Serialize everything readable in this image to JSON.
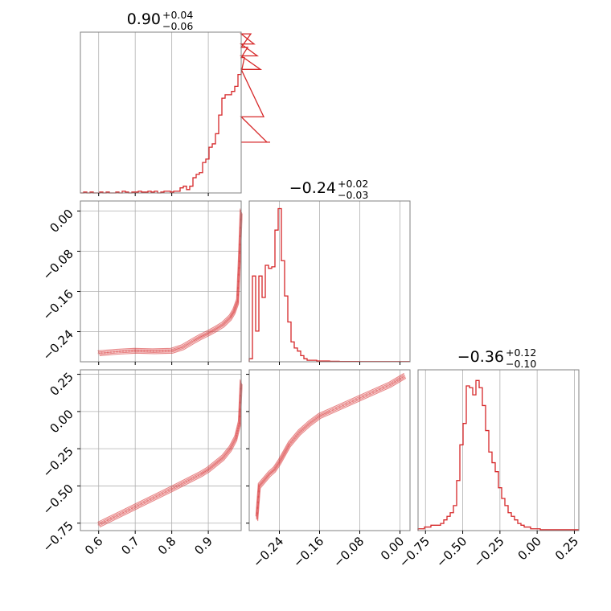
{
  "colors": {
    "line": "#d62728",
    "grid": "#b0b0b0",
    "frame": "#808080"
  },
  "chart_data": [
    {
      "panel": "hist-param1",
      "type": "histogram",
      "title": {
        "main": "0.90",
        "plus": "+0.04",
        "minus": "−0.06"
      },
      "xlim": [
        0.55,
        0.99
      ],
      "bins_start": 0.55,
      "bin_width": 0.0088,
      "values": [
        0,
        0.5,
        0,
        0.5,
        0,
        0,
        0.5,
        0,
        0.5,
        0,
        0,
        0.5,
        0,
        1,
        0.5,
        0,
        0.5,
        0.5,
        1,
        0.5,
        0.5,
        1,
        0.5,
        1,
        0,
        0.5,
        1,
        1,
        0.5,
        1,
        1,
        3,
        4,
        2,
        4,
        9,
        11,
        12,
        18,
        20,
        27,
        29,
        35,
        46,
        56,
        58,
        58,
        60,
        63,
        70,
        71,
        80,
        86,
        94,
        88,
        81,
        73,
        45,
        30,
        30
      ],
      "ylim": [
        0,
        95
      ]
    },
    {
      "panel": "hist-param2",
      "type": "histogram",
      "title": {
        "main": "−0.24",
        "plus": "+0.02",
        "minus": "−0.03"
      },
      "xlim": [
        -0.3,
        0.02
      ],
      "xticks": [
        "−0.24",
        "−0.16",
        "−0.08",
        "0.00"
      ],
      "xtick_values": [
        -0.24,
        -0.16,
        -0.08,
        0.0
      ],
      "bins_start": -0.3,
      "bin_width": 0.0064,
      "values": [
        2,
        56,
        20,
        56,
        42,
        63,
        61,
        62,
        86,
        100,
        66,
        43,
        26,
        13,
        9,
        7,
        4,
        2,
        1,
        1,
        1,
        0.5,
        0.5,
        0.5,
        0.5,
        0.3,
        0.3,
        0.3,
        0.2,
        0.2,
        0.2,
        0.2,
        0.2,
        0.2,
        0.1,
        0.1,
        0.1,
        0.1,
        0.1,
        0.1,
        0.1,
        0.1,
        0.1,
        0.1,
        0.1,
        0.1,
        0.1,
        0.1,
        0.1,
        0.1
      ],
      "ylim": [
        0,
        105
      ]
    },
    {
      "panel": "hist-param3",
      "type": "histogram",
      "title": {
        "main": "−0.36",
        "plus": "+0.12",
        "minus": "−0.10"
      },
      "xlim": [
        -0.8,
        0.28
      ],
      "xticks": [
        "−0.75",
        "−0.50",
        "−0.25",
        "0.00",
        "0.25"
      ],
      "xtick_values": [
        -0.75,
        -0.5,
        -0.25,
        0.0,
        0.25
      ],
      "bins_start": -0.8,
      "bin_width": 0.0216,
      "values": [
        1,
        1,
        2,
        2,
        3,
        3,
        3,
        4,
        6,
        8,
        10,
        14,
        28,
        48,
        60,
        81,
        80,
        76,
        84,
        80,
        70,
        56,
        44,
        38,
        33,
        24,
        18,
        14,
        10,
        8,
        6,
        4,
        3,
        2,
        2,
        1,
        1,
        1,
        0.5,
        0.5,
        0.5,
        0.5,
        0.5,
        0.5,
        0.5,
        0.5,
        0.5,
        0.5,
        0.5,
        0.5
      ],
      "ylim": [
        0,
        90
      ]
    },
    {
      "panel": "scatter-p1-p2",
      "type": "scatter",
      "xlim": [
        0.55,
        0.99
      ],
      "ylim": [
        -0.3,
        0.02
      ],
      "yticks": [
        "0.00",
        "−0.08",
        "−0.16",
        "−0.24"
      ],
      "ytick_values": [
        0.0,
        -0.08,
        -0.16,
        -0.24
      ],
      "curve_x": [
        0.6,
        0.65,
        0.7,
        0.75,
        0.8,
        0.83,
        0.86,
        0.88,
        0.9,
        0.92,
        0.94,
        0.96,
        0.97,
        0.98,
        0.985,
        0.99
      ],
      "curve_y": [
        -0.283,
        -0.28,
        -0.278,
        -0.279,
        -0.278,
        -0.271,
        -0.258,
        -0.25,
        -0.243,
        -0.235,
        -0.226,
        -0.212,
        -0.2,
        -0.18,
        -0.1,
        0.0
      ]
    },
    {
      "panel": "scatter-p1-p3",
      "type": "scatter",
      "xlim": [
        0.55,
        0.99
      ],
      "ylim": [
        -0.8,
        0.28
      ],
      "xticks": [
        "0.6",
        "0.7",
        "0.8",
        "0.9"
      ],
      "xtick_values": [
        0.6,
        0.7,
        0.8,
        0.9
      ],
      "yticks": [
        "0.25",
        "0.00",
        "−0.25",
        "−0.50",
        "−0.75"
      ],
      "ytick_values": [
        0.25,
        0.0,
        -0.25,
        -0.5,
        -0.75
      ],
      "curve_x": [
        0.6,
        0.65,
        0.7,
        0.75,
        0.8,
        0.84,
        0.88,
        0.9,
        0.92,
        0.94,
        0.96,
        0.975,
        0.985,
        0.99
      ],
      "curve_y": [
        -0.76,
        -0.7,
        -0.64,
        -0.58,
        -0.52,
        -0.47,
        -0.42,
        -0.39,
        -0.35,
        -0.31,
        -0.25,
        -0.18,
        -0.08,
        0.2
      ]
    },
    {
      "panel": "scatter-p2-p3",
      "type": "scatter",
      "xlim": [
        -0.3,
        0.02
      ],
      "ylim": [
        -0.8,
        0.28
      ],
      "xticks": [
        "−0.24",
        "−0.16",
        "−0.08",
        "0.00"
      ],
      "xtick_values": [
        -0.24,
        -0.16,
        -0.08,
        0.0
      ],
      "curve_x": [
        -0.285,
        -0.28,
        -0.27,
        -0.26,
        -0.25,
        -0.24,
        -0.23,
        -0.22,
        -0.2,
        -0.18,
        -0.16,
        -0.14,
        -0.1,
        -0.06,
        -0.02,
        0.01
      ],
      "curve_y": [
        -0.72,
        -0.5,
        -0.46,
        -0.42,
        -0.39,
        -0.34,
        -0.28,
        -0.22,
        -0.14,
        -0.08,
        -0.03,
        0.0,
        0.06,
        0.12,
        0.18,
        0.24
      ]
    }
  ]
}
